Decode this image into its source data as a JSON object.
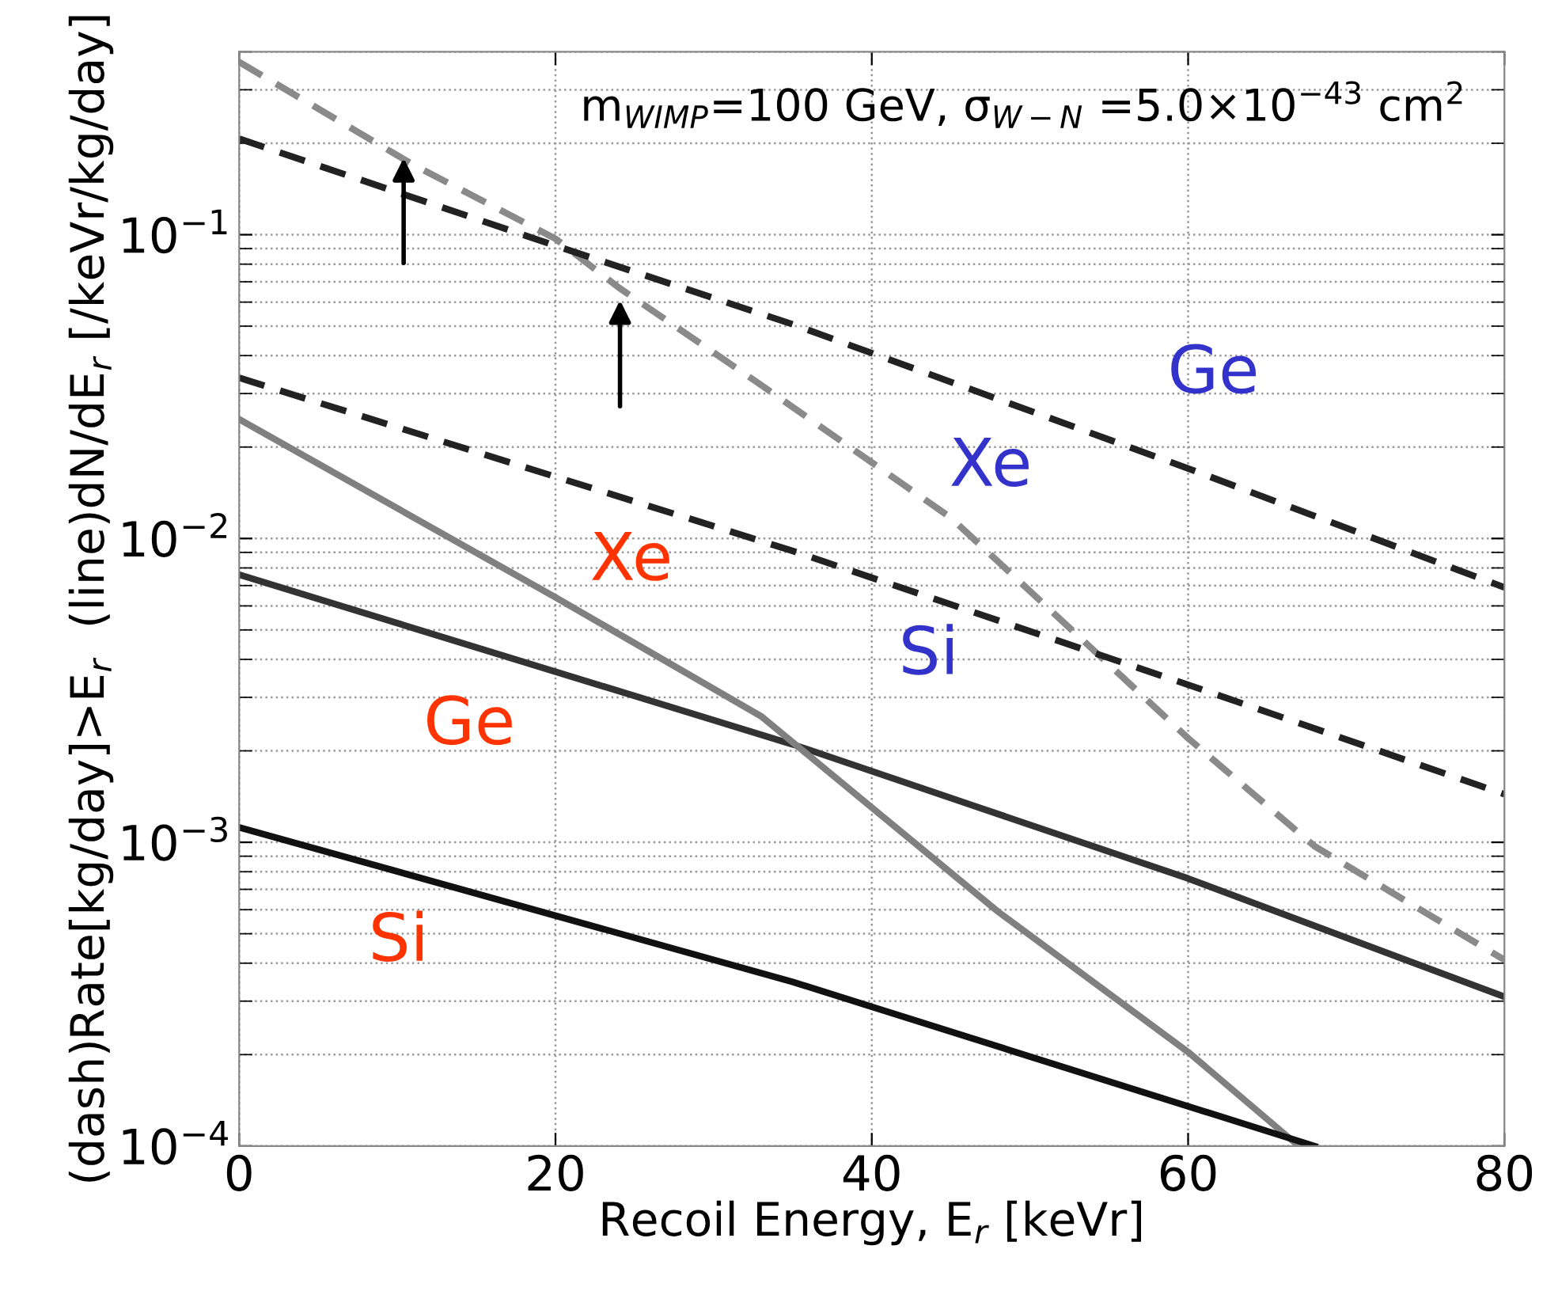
{
  "chart_data": {
    "type": "line",
    "xlabel": "Recoil Energy, E$_{r}$ [keVr]",
    "ylabel": "(dash)Rate[kg/day]>E$_{r}$  (line)dN/dE$_{r}$ [/keVr/kg/day]",
    "series": [
      {
        "name": "Xe",
        "color": "#8a8a8a",
        "line_style": "dashed",
        "x": [
          0,
          11,
          20,
          24,
          33,
          45,
          54,
          60,
          68,
          80
        ],
        "values": [
          0.37,
          0.17,
          0.097,
          0.067,
          0.032,
          0.0117,
          0.0043,
          0.0022,
          0.00097,
          0.00041
        ]
      },
      {
        "name": "Ge",
        "color": "#222222",
        "line_style": "dashed",
        "x": [
          0,
          20,
          35,
          60,
          80
        ],
        "values": [
          0.207,
          0.092,
          0.0507,
          0.017,
          0.0069
        ]
      },
      {
        "name": "Si",
        "color": "#222222",
        "line_style": "dashed",
        "x": [
          0,
          35,
          60,
          80
        ],
        "values": [
          0.0338,
          0.0091,
          0.0033,
          0.00144
        ]
      },
      {
        "name": "Ge",
        "color": "#333333",
        "line_style": "solid",
        "x": [
          0,
          35,
          60,
          80
        ],
        "values": [
          0.0076,
          0.0021,
          0.00076,
          0.00031
        ]
      },
      {
        "name": "Xe",
        "color": "#808080",
        "line_style": "solid",
        "x": [
          0,
          20,
          33,
          48,
          60,
          67
        ],
        "values": [
          0.0247,
          0.0064,
          0.0026,
          0.00059,
          0.000204,
          0.0001
        ]
      },
      {
        "name": "Si",
        "color": "#111111",
        "line_style": "solid",
        "x": [
          0,
          35,
          68
        ],
        "values": [
          0.00112,
          0.000347,
          0.0001
        ]
      }
    ],
    "annotations": [
      "m$_{WIMP}$=100 GeV, σ$_{W−N}$ =5.0×10$^{−43}$ cm$^{2}$"
    ],
    "log": "y",
    "grid": true,
    "marker": "none",
    "xlim": [
      0,
      80
    ],
    "xticks": [
      0,
      20,
      40,
      60,
      80
    ],
    "ylim": [
      0.0001,
      0.4
    ],
    "yticks": [
      {
        "value": 0.0001,
        "label": "10$^{−4}$"
      },
      {
        "value": 0.001,
        "label": "10$^{−3}$"
      },
      {
        "value": 0.01,
        "label": "10$^{−2}$"
      },
      {
        "value": 0.1,
        "label": "10$^{−1}$"
      }
    ]
  }
}
